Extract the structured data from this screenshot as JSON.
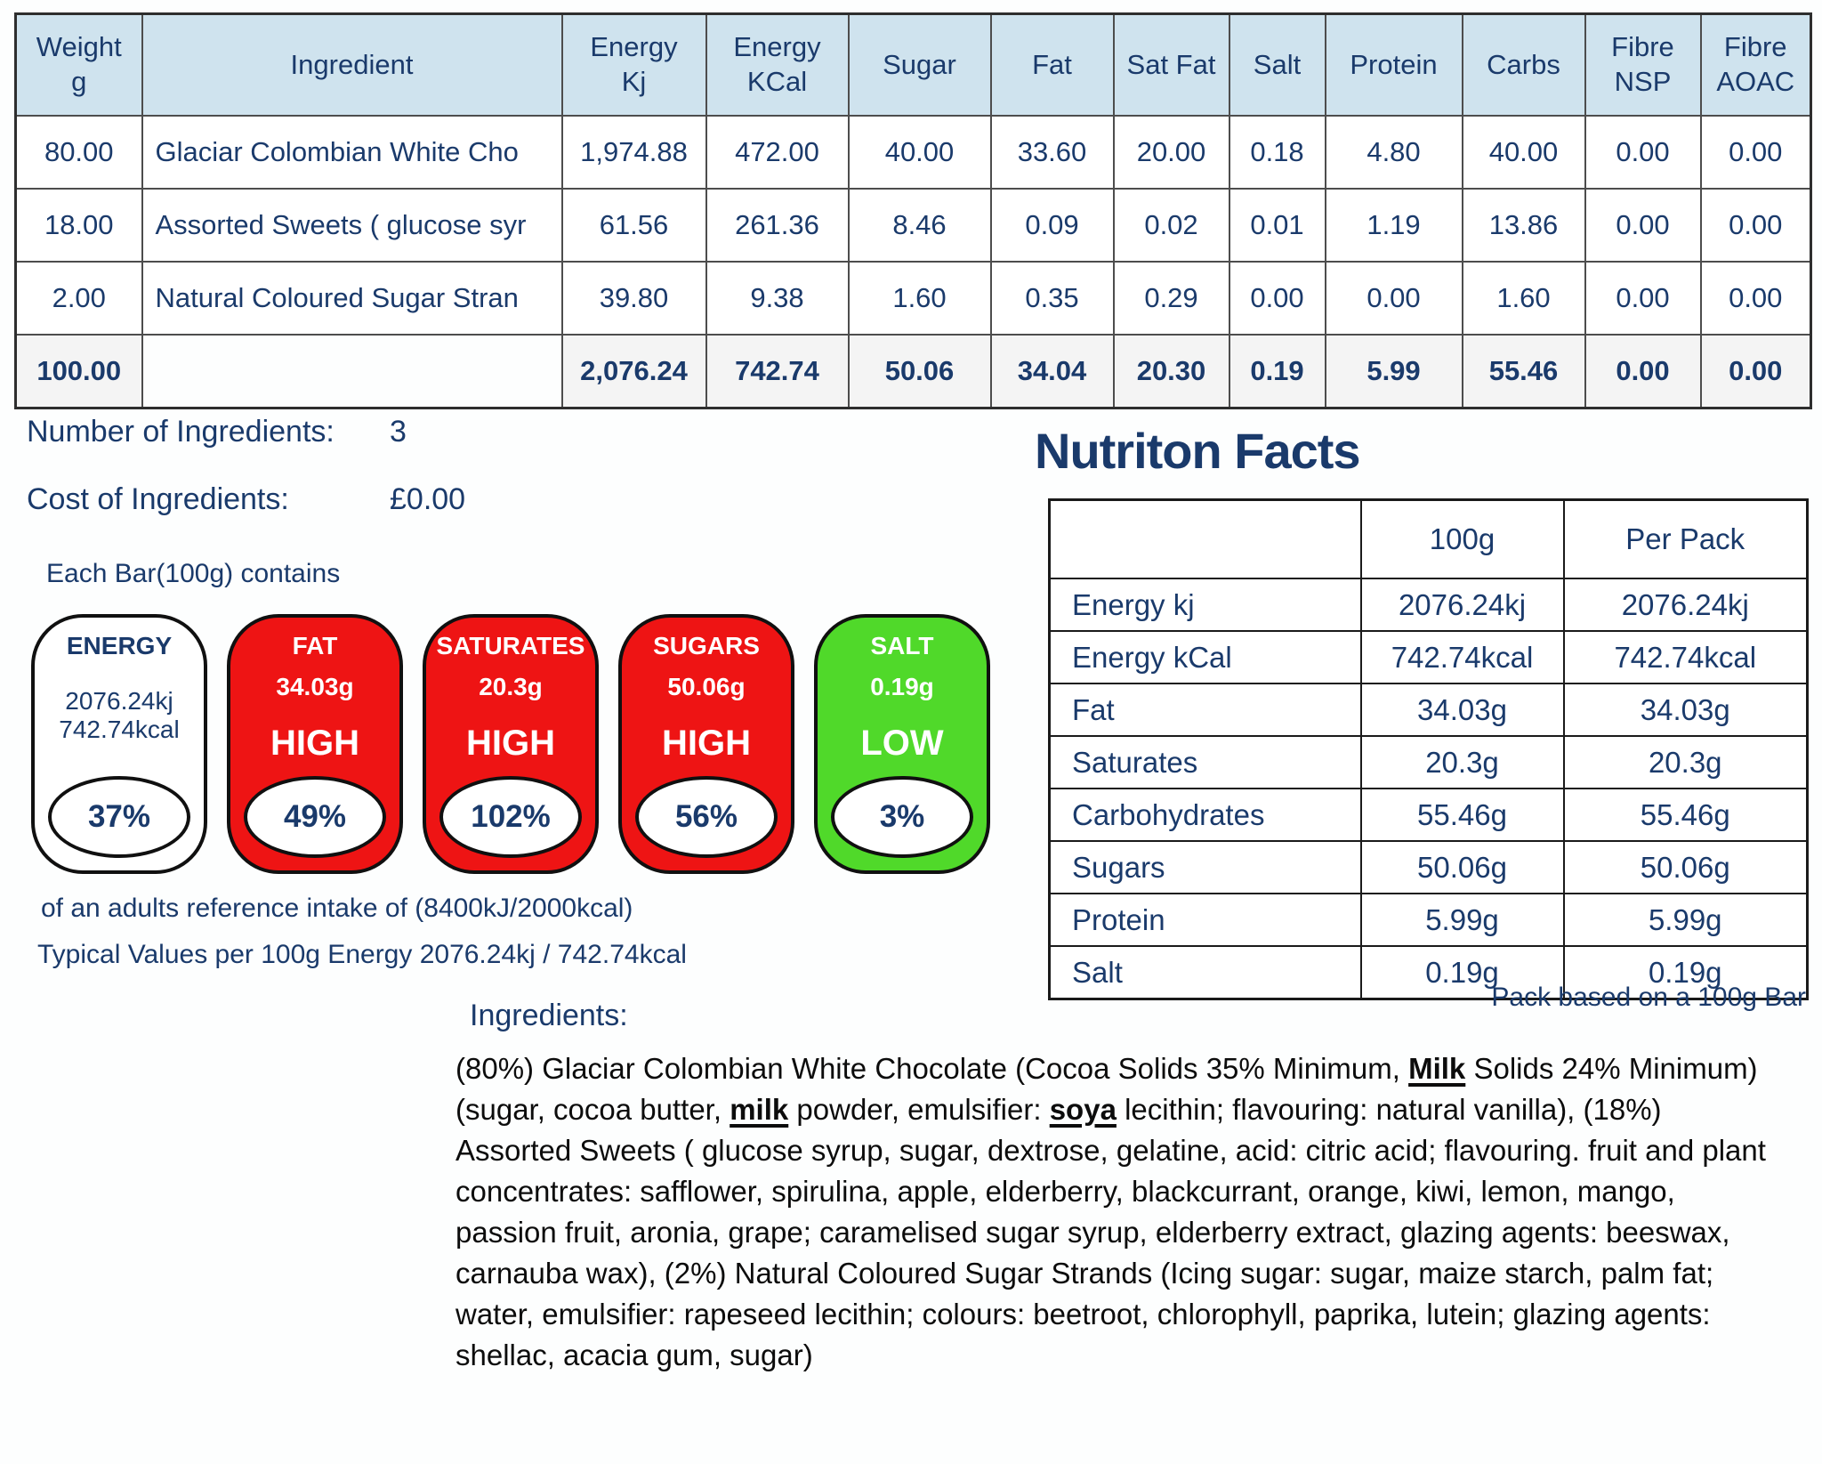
{
  "colors": {
    "navy_text": "#1a3a6b",
    "table_header_bg": "#cfe3ee",
    "total_row_bg": "#f4f4f4",
    "high_red": "#ee1414",
    "low_green": "#50d92a",
    "pill_oval_bg": "#ffffff"
  },
  "ingredient_table": {
    "headers": [
      "Weight\ng",
      "Ingredient",
      "Energy\nKj",
      "Energy\nKCal",
      "Sugar",
      "Fat",
      "Sat Fat",
      "Salt",
      "Protein",
      "Carbs",
      "Fibre\nNSP",
      "Fibre\nAOAC"
    ],
    "rows": [
      [
        "80.00",
        "Glaciar Colombian White Cho",
        "1,974.88",
        "472.00",
        "40.00",
        "33.60",
        "20.00",
        "0.18",
        "4.80",
        "40.00",
        "0.00",
        "0.00"
      ],
      [
        "18.00",
        "Assorted Sweets ( glucose syr",
        "61.56",
        "261.36",
        "8.46",
        "0.09",
        "0.02",
        "0.01",
        "1.19",
        "13.86",
        "0.00",
        "0.00"
      ],
      [
        "2.00",
        "Natural Coloured Sugar Stran",
        "39.80",
        "9.38",
        "1.60",
        "0.35",
        "0.29",
        "0.00",
        "0.00",
        "1.60",
        "0.00",
        "0.00"
      ]
    ],
    "total_row": [
      "100.00",
      "",
      "2,076.24",
      "742.74",
      "50.06",
      "34.04",
      "20.30",
      "0.19",
      "5.99",
      "55.46",
      "0.00",
      "0.00"
    ]
  },
  "summary": {
    "num_ingredients_label": "Number of Ingredients:",
    "num_ingredients_value": "3",
    "cost_label": "Cost of Ingredients:",
    "cost_value": "£0.00"
  },
  "traffic_lights": {
    "heading": "Each Bar(100g) contains",
    "pills": [
      {
        "name": "ENERGY",
        "values": [
          "2076.24kj",
          "742.74kcal"
        ],
        "level": "",
        "percent": "37%",
        "color": "white"
      },
      {
        "name": "FAT",
        "values": [
          "34.03g"
        ],
        "level": "HIGH",
        "percent": "49%",
        "color": "red"
      },
      {
        "name": "SATURATES",
        "values": [
          "20.3g"
        ],
        "level": "HIGH",
        "percent": "102%",
        "color": "red"
      },
      {
        "name": "SUGARS",
        "values": [
          "50.06g"
        ],
        "level": "HIGH",
        "percent": "56%",
        "color": "red"
      },
      {
        "name": "SALT",
        "values": [
          "0.19g"
        ],
        "level": "LOW",
        "percent": "3%",
        "color": "green"
      }
    ],
    "footnote1": "of an adults reference intake of (8400kJ/2000kcal)",
    "footnote2": "Typical Values per 100g Energy 2076.24kj / 742.74kcal"
  },
  "nutrition_facts": {
    "title": "Nutriton Facts",
    "col_headers": [
      "",
      "100g",
      "Per Pack"
    ],
    "rows": [
      [
        "Energy kj",
        "2076.24kj",
        "2076.24kj"
      ],
      [
        "Energy kCal",
        "742.74kcal",
        "742.74kcal"
      ],
      [
        "Fat",
        "34.03g",
        "34.03g"
      ],
      [
        "Saturates",
        "20.3g",
        "20.3g"
      ],
      [
        "Carbohydrates",
        "55.46g",
        "55.46g"
      ],
      [
        "Sugars",
        "50.06g",
        "50.06g"
      ],
      [
        "Protein",
        "5.99g",
        "5.99g"
      ],
      [
        "Salt",
        "0.19g",
        "0.19g"
      ]
    ],
    "pack_note": "Pack based on a 100g Bar"
  },
  "ingredients_section": {
    "heading": "Ingredients:",
    "segments": [
      {
        "text": "(80%) Glaciar Colombian White Chocolate (Cocoa Solids 35% Minimum, ",
        "allergen": false
      },
      {
        "text": "Milk",
        "allergen": true
      },
      {
        "text": " Solids 24% Minimum) (sugar, cocoa butter, ",
        "allergen": false
      },
      {
        "text": "milk",
        "allergen": true
      },
      {
        "text": " powder, emulsifier: ",
        "allergen": false
      },
      {
        "text": "soya",
        "allergen": true
      },
      {
        "text": " lecithin; flavouring: natural vanilla), (18%) Assorted Sweets ( glucose syrup, sugar, dextrose, gelatine, acid: citric acid; flavouring. fruit and plant concentrates: safflower, spirulina, apple, elderberry, blackcurrant, orange, kiwi, lemon, mango, passion fruit, aronia, grape; caramelised sugar syrup, elderberry extract, glazing agents: beeswax, carnauba wax), (2%) Natural Coloured Sugar Strands (Icing sugar: sugar, maize starch, palm fat; water, emulsifier: rapeseed lecithin; colours: beetroot, chlorophyll, paprika, lutein; glazing agents: shellac, acacia gum, sugar)",
        "allergen": false
      }
    ]
  }
}
